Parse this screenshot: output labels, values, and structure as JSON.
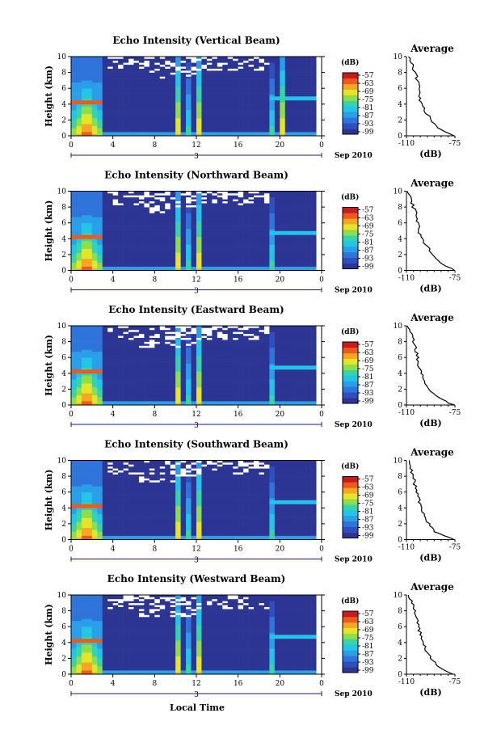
{
  "figure": {
    "xlabel": "Local Time",
    "date_label": "Sep 2010",
    "x_ticks": [
      "0",
      "4",
      "8",
      "12",
      "16",
      "20",
      "0"
    ],
    "day_label": "3",
    "y_ticks": [
      "0",
      "2",
      "4",
      "6",
      "8",
      "10"
    ],
    "ylabel": "Height (km)",
    "cbar_unit": "(dB)",
    "cbar_ticks": [
      "-57",
      "-63",
      "-69",
      "-75",
      "-81",
      "-87",
      "-93",
      "-99"
    ],
    "avg_title": "Average",
    "avg_xlabel": "(dB)",
    "avg_xticks": [
      "-110",
      "-75"
    ]
  },
  "colors": {
    "colormap": [
      "#2c3593",
      "#2f4fc0",
      "#2e74da",
      "#2a9ee8",
      "#22c5e8",
      "#36d4a8",
      "#8fdc4c",
      "#e5e528",
      "#f5a623",
      "#ee5a1e",
      "#c81c1c"
    ],
    "background": "#ffffff"
  },
  "chart_data": [
    {
      "type": "heatmap",
      "title": "Echo Intensity (Vertical Beam)",
      "xlabel": "",
      "ylabel": "Height (km)",
      "xlim": [
        0,
        24
      ],
      "ylim": [
        0,
        10
      ],
      "zlim": [
        -99,
        -57
      ],
      "colorbar_label": "(dB)",
      "hot_columns_hours": [
        1.5,
        10.3,
        11.3,
        12.3,
        19.3,
        20.3
      ],
      "average_profile": {
        "title": "Average",
        "xlabel": "(dB)",
        "xlim": [
          -110,
          -75
        ],
        "height_km": [
          0,
          1,
          2,
          3,
          4,
          5,
          6,
          7,
          8,
          9,
          10
        ],
        "db": [
          -75,
          -87,
          -92,
          -96,
          -99,
          -101,
          -100,
          -102,
          -104,
          -106,
          -109
        ]
      }
    },
    {
      "type": "heatmap",
      "title": "Echo Intensity (Northward Beam)",
      "xlabel": "",
      "ylabel": "Height (km)",
      "xlim": [
        0,
        24
      ],
      "ylim": [
        0,
        10
      ],
      "zlim": [
        -99,
        -57
      ],
      "colorbar_label": "(dB)",
      "hot_columns_hours": [
        1.5,
        10.3,
        11.3,
        12.3,
        19.3
      ],
      "average_profile": {
        "title": "Average",
        "xlabel": "(dB)",
        "xlim": [
          -110,
          -75
        ],
        "height_km": [
          0,
          1,
          2,
          3,
          4,
          5,
          6,
          7,
          8,
          9,
          10
        ],
        "db": [
          -75,
          -86,
          -91,
          -95,
          -99,
          -101,
          -102,
          -103,
          -105,
          -107,
          -109
        ]
      }
    },
    {
      "type": "heatmap",
      "title": "Echo Intensity (Eastward Beam)",
      "xlabel": "",
      "ylabel": "Height (km)",
      "xlim": [
        0,
        24
      ],
      "ylim": [
        0,
        10
      ],
      "zlim": [
        -99,
        -57
      ],
      "colorbar_label": "(dB)",
      "hot_columns_hours": [
        1.5,
        10.3,
        11.3,
        12.3,
        19.3
      ],
      "average_profile": {
        "title": "Average",
        "xlabel": "(dB)",
        "xlim": [
          -110,
          -75
        ],
        "height_km": [
          0,
          1,
          2,
          3,
          4,
          5,
          6,
          7,
          8,
          9,
          10
        ],
        "db": [
          -76,
          -88,
          -93,
          -97,
          -99,
          -101,
          -102,
          -103,
          -105,
          -107,
          -110
        ]
      }
    },
    {
      "type": "heatmap",
      "title": "Echo Intensity (Southward Beam)",
      "xlabel": "",
      "ylabel": "Height (km)",
      "xlim": [
        0,
        24
      ],
      "ylim": [
        0,
        10
      ],
      "zlim": [
        -99,
        -57
      ],
      "colorbar_label": "(dB)",
      "hot_columns_hours": [
        1.5,
        10.3,
        11.3,
        12.3,
        19.3
      ],
      "average_profile": {
        "title": "Average",
        "xlabel": "(dB)",
        "xlim": [
          -110,
          -75
        ],
        "height_km": [
          0,
          1,
          2,
          3,
          4,
          5,
          6,
          7,
          8,
          9,
          10
        ],
        "db": [
          -76,
          -89,
          -94,
          -97,
          -99,
          -101,
          -102,
          -104,
          -105,
          -107,
          -109
        ]
      }
    },
    {
      "type": "heatmap",
      "title": "Echo Intensity (Westward Beam)",
      "xlabel": "Local Time",
      "ylabel": "Height (km)",
      "xlim": [
        0,
        24
      ],
      "ylim": [
        0,
        10
      ],
      "zlim": [
        -99,
        -57
      ],
      "colorbar_label": "(dB)",
      "hot_columns_hours": [
        1.5,
        10.3,
        11.3,
        12.3,
        19.3
      ],
      "average_profile": {
        "title": "Average",
        "xlabel": "(dB)",
        "xlim": [
          -110,
          -75
        ],
        "height_km": [
          0,
          1,
          2,
          3,
          4,
          5,
          6,
          7,
          8,
          9,
          10
        ],
        "db": [
          -76,
          -87,
          -92,
          -96,
          -98,
          -100,
          -101,
          -102,
          -104,
          -106,
          -109
        ]
      }
    }
  ]
}
